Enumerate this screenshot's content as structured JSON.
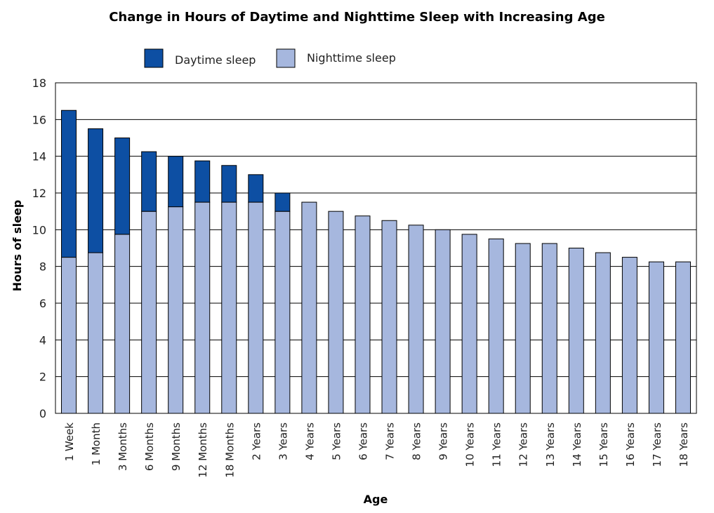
{
  "chart_data": {
    "type": "bar",
    "stacked": true,
    "title": "Change in Hours of Daytime and Nighttime Sleep with Increasing Age",
    "xlabel": "Age",
    "ylabel": "Hours of sleep",
    "ylim": [
      0,
      18
    ],
    "yticks": [
      "0",
      "2",
      "4",
      "6",
      "8",
      "10",
      "12",
      "14",
      "16",
      "18"
    ],
    "grid": true,
    "legend_position": "top",
    "categories": [
      "1 Week",
      "1 Month",
      "3 Months",
      "6 Months",
      "9 Months",
      "12 Months",
      "18 Months",
      "2 Years",
      "3 Years",
      "4 Years",
      "5 Years",
      "6 Years",
      "7 Years",
      "8 Years",
      "9 Years",
      "10 Years",
      "11 Years",
      "12 Years",
      "13 Years",
      "14 Years",
      "15 Years",
      "16 Years",
      "17 Years",
      "18 Years"
    ],
    "series": [
      {
        "name": "Nighttime sleep",
        "color": "#a6b7de",
        "values": [
          8.5,
          8.75,
          9.75,
          11,
          11.25,
          11.5,
          11.5,
          11.5,
          11,
          11.5,
          11,
          10.75,
          10.5,
          10.25,
          10,
          9.75,
          9.5,
          9.25,
          9.25,
          9,
          8.75,
          8.5,
          8.25,
          8.25
        ]
      },
      {
        "name": "Daytime sleep",
        "color": "#0d4fa3",
        "values": [
          8,
          6.75,
          5.25,
          3.25,
          2.75,
          2.25,
          2,
          1.5,
          1,
          0,
          0,
          0,
          0,
          0,
          0,
          0,
          0,
          0,
          0,
          0,
          0,
          0,
          0,
          0
        ]
      }
    ],
    "legend": [
      "Daytime sleep",
      "Nighttime sleep"
    ]
  }
}
